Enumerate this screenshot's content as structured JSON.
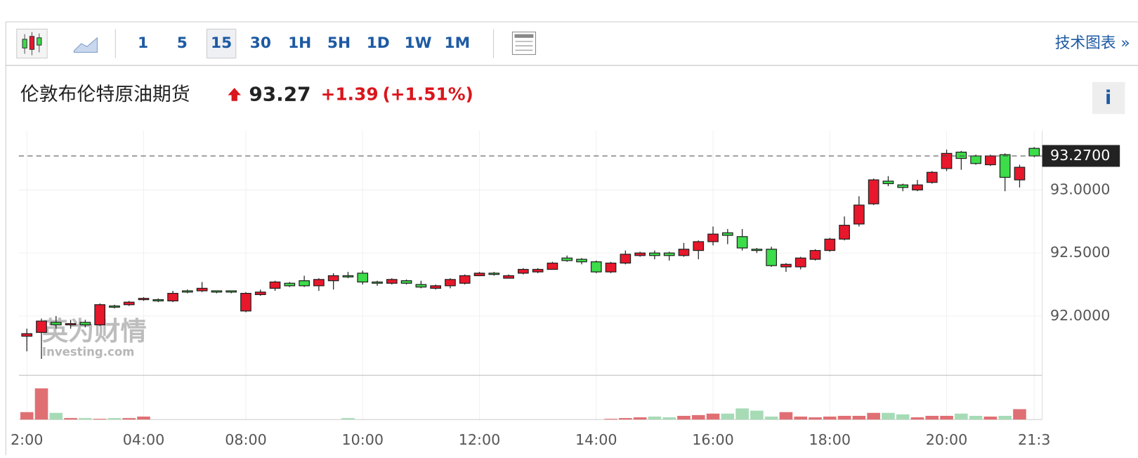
{
  "toolbar": {
    "intervals": [
      "1",
      "5",
      "15",
      "30",
      "1H",
      "5H",
      "1D",
      "1W",
      "1M"
    ],
    "chart_link": "技术图表 »"
  },
  "header": {
    "title": "伦敦布伦特原油期货",
    "price": "93.27",
    "change": "+1.39",
    "change_percent": "(+1.51%)",
    "info": "i"
  },
  "chart_data": {
    "type": "candlestick",
    "categories": [
      "2:00",
      null,
      null,
      null,
      null,
      null,
      null,
      null,
      "04:00",
      null,
      null,
      null,
      null,
      null,
      null,
      "08:00",
      null,
      null,
      null,
      null,
      null,
      null,
      null,
      "10:00",
      null,
      null,
      null,
      null,
      null,
      null,
      null,
      "12:00",
      null,
      null,
      null,
      null,
      null,
      null,
      null,
      "14:00",
      null,
      null,
      null,
      null,
      null,
      null,
      null,
      "16:00",
      null,
      null,
      null,
      null,
      null,
      null,
      null,
      "18:00",
      null,
      null,
      null,
      null,
      null,
      null,
      null,
      "20:00",
      null,
      null,
      null,
      null,
      null,
      "21:3"
    ],
    "open": [
      91.84,
      91.87,
      91.95,
      91.93,
      91.95,
      91.93,
      92.08,
      92.09,
      92.13,
      92.13,
      92.12,
      92.2,
      92.2,
      92.2,
      92.2,
      92.04,
      92.17,
      92.22,
      92.26,
      92.28,
      92.24,
      92.28,
      92.32,
      92.34,
      92.27,
      92.26,
      92.28,
      92.25,
      92.22,
      92.24,
      92.26,
      92.32,
      92.34,
      92.3,
      92.34,
      92.35,
      92.37,
      92.46,
      92.45,
      92.43,
      92.35,
      92.42,
      92.48,
      92.5,
      92.5,
      92.48,
      92.52,
      92.59,
      92.66,
      92.63,
      92.53,
      92.53,
      92.39,
      92.39,
      92.45,
      92.52,
      92.61,
      92.73,
      92.89,
      93.07,
      93.04,
      93.0,
      93.06,
      93.17,
      93.3,
      93.27,
      93.2,
      93.28,
      93.08,
      93.33
    ],
    "high": [
      91.9,
      91.98,
      92.0,
      91.97,
      91.97,
      92.1,
      92.09,
      92.12,
      92.15,
      92.14,
      92.2,
      92.21,
      92.27,
      92.2,
      92.2,
      92.19,
      92.21,
      92.28,
      92.27,
      92.32,
      92.3,
      92.34,
      92.35,
      92.36,
      92.28,
      92.3,
      92.29,
      92.28,
      92.25,
      92.3,
      92.33,
      92.35,
      92.35,
      92.33,
      92.38,
      92.38,
      92.43,
      92.48,
      92.46,
      92.44,
      92.43,
      92.52,
      92.51,
      92.52,
      92.51,
      92.58,
      92.6,
      92.71,
      92.69,
      92.69,
      92.54,
      92.55,
      92.42,
      92.47,
      92.53,
      92.62,
      92.79,
      92.95,
      93.09,
      93.11,
      93.05,
      93.08,
      93.15,
      93.32,
      93.31,
      93.28,
      93.28,
      93.29,
      93.2,
      93.34
    ],
    "low": [
      91.72,
      91.66,
      91.9,
      91.9,
      91.91,
      91.92,
      92.06,
      92.08,
      92.12,
      92.11,
      92.11,
      92.18,
      92.19,
      92.18,
      92.18,
      92.03,
      92.16,
      92.2,
      92.23,
      92.23,
      92.2,
      92.21,
      92.3,
      92.25,
      92.24,
      92.25,
      92.25,
      92.22,
      92.21,
      92.22,
      92.25,
      92.32,
      92.32,
      92.3,
      92.33,
      92.34,
      92.37,
      92.43,
      92.41,
      92.34,
      92.34,
      92.41,
      92.47,
      92.45,
      92.44,
      92.47,
      92.45,
      92.56,
      92.57,
      92.52,
      92.5,
      92.39,
      92.35,
      92.37,
      92.44,
      92.51,
      92.6,
      92.71,
      92.88,
      93.03,
      92.99,
      92.99,
      93.05,
      93.15,
      93.16,
      93.2,
      93.19,
      92.99,
      93.02,
      93.26
    ],
    "close": [
      91.86,
      91.96,
      91.93,
      91.94,
      91.93,
      92.09,
      92.07,
      92.11,
      92.14,
      92.12,
      92.18,
      92.19,
      92.22,
      92.19,
      92.19,
      92.18,
      92.19,
      92.27,
      92.24,
      92.24,
      92.29,
      92.32,
      92.31,
      92.27,
      92.26,
      92.29,
      92.26,
      92.23,
      92.24,
      92.29,
      92.32,
      92.34,
      92.33,
      92.32,
      92.37,
      92.37,
      92.42,
      92.44,
      92.43,
      92.35,
      92.42,
      92.49,
      92.5,
      92.48,
      92.48,
      92.53,
      92.59,
      92.65,
      92.64,
      92.54,
      92.52,
      92.4,
      92.41,
      92.46,
      92.52,
      92.61,
      92.72,
      92.88,
      93.08,
      93.05,
      93.02,
      93.04,
      93.14,
      93.29,
      93.25,
      93.21,
      93.27,
      93.1,
      93.18,
      93.27
    ],
    "volume": [
      10,
      42,
      9,
      2,
      2,
      1,
      2,
      2,
      4,
      0,
      0,
      0,
      0,
      0,
      0,
      0,
      0,
      0,
      0,
      0,
      0,
      0,
      2,
      0,
      0,
      0,
      0,
      0,
      0,
      0,
      0,
      0,
      0,
      0,
      0,
      0,
      0,
      0,
      0,
      0,
      1,
      2,
      3,
      4,
      3,
      5,
      6,
      8,
      8,
      15,
      12,
      4,
      10,
      4,
      3,
      4,
      5,
      5,
      9,
      9,
      7,
      3,
      5,
      5,
      8,
      5,
      4,
      5,
      14,
      0
    ],
    "up_color": "#e8172b",
    "down_color": "#3cdc4a",
    "volume_up_color": "#e06f73",
    "volume_down_color": "#a6dbb6",
    "ylim": [
      91.53,
      93.47
    ],
    "yticks": [
      {
        "value": 92,
        "label": "92.0000"
      },
      {
        "value": 92.5,
        "label": "92.5000"
      },
      {
        "value": 93,
        "label": "93.0000"
      }
    ],
    "last_price": {
      "value": 93.27,
      "label": "93.2700"
    },
    "grid": true,
    "watermark": [
      "英为财情",
      "Investing.com"
    ]
  }
}
